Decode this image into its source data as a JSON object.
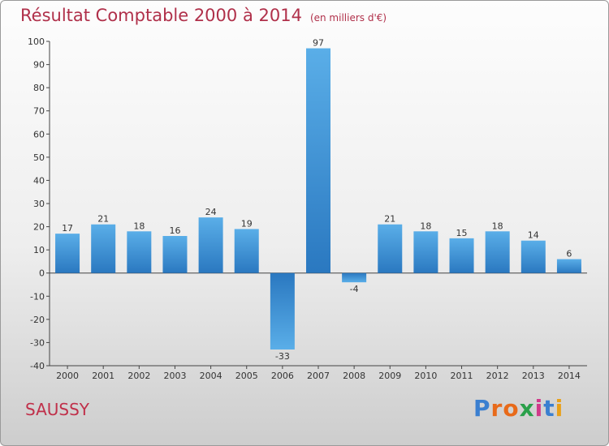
{
  "chart_data": {
    "type": "bar",
    "title": "Résultat Comptable 2000 à 2014",
    "subtitle": "(en milliers d'€)",
    "categories": [
      "2000",
      "2001",
      "2002",
      "2003",
      "2004",
      "2005",
      "2006",
      "2007",
      "2008",
      "2009",
      "2010",
      "2011",
      "2012",
      "2013",
      "2014"
    ],
    "values": [
      17,
      21,
      18,
      16,
      24,
      19,
      -33,
      97,
      -4,
      21,
      18,
      15,
      18,
      14,
      6
    ],
    "ylim": [
      -40,
      100
    ],
    "yticks": [
      -40,
      -30,
      -20,
      -10,
      0,
      10,
      20,
      30,
      40,
      50,
      60,
      70,
      80,
      90,
      100
    ],
    "xlabel": "",
    "ylabel": "",
    "grid": false,
    "bar_color": "#3a8fd6"
  },
  "footer": {
    "location": "SAUSSY",
    "brand_letters": [
      "P",
      "r",
      "o",
      "x",
      "i",
      "t",
      "i"
    ],
    "brand_colors": [
      "#3a7fd0",
      "#e86a1a",
      "#e86a1a",
      "#2aa04a",
      "#d03a8a",
      "#3a7fd0",
      "#e8a01a"
    ]
  }
}
